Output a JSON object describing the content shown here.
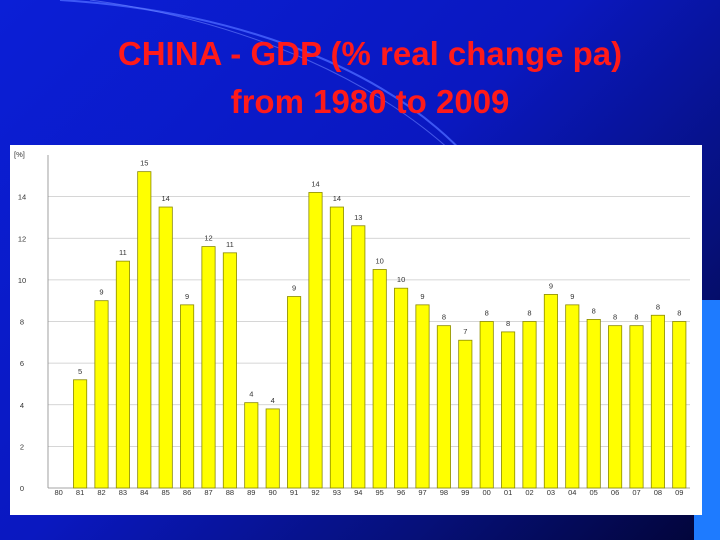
{
  "title": {
    "line1": "CHINA - GDP (% real change pa)",
    "line2": "from 1980 to 2009"
  },
  "colors": {
    "bar_fill": "#ffff00",
    "bar_stroke": "#8a8a00",
    "title": "#ff1a1a",
    "grid": "#c8c8c8"
  },
  "chart_data": {
    "type": "bar",
    "ylabel": "[%]",
    "ylim": [
      0,
      16
    ],
    "yticks": [
      0,
      2,
      4,
      6,
      8,
      10,
      12,
      14
    ],
    "grid": true,
    "categories": [
      "80",
      "81",
      "82",
      "83",
      "84",
      "85",
      "86",
      "87",
      "88",
      "89",
      "90",
      "91",
      "92",
      "93",
      "94",
      "95",
      "96",
      "97",
      "98",
      "99",
      "00",
      "01",
      "02",
      "03",
      "04",
      "05",
      "06",
      "07",
      "08",
      "09"
    ],
    "values": [
      null,
      5.2,
      9.0,
      10.9,
      15.2,
      13.5,
      8.8,
      11.6,
      11.3,
      4.1,
      3.8,
      9.2,
      14.2,
      13.5,
      12.6,
      10.5,
      9.6,
      8.8,
      7.8,
      7.1,
      8.0,
      7.5,
      8.0,
      9.3,
      8.8,
      8.1,
      7.8,
      7.8,
      8.3,
      8.0
    ],
    "data_labels": [
      "",
      "5",
      "9",
      "11",
      "15",
      "14",
      "9",
      "12",
      "11",
      "4",
      "4",
      "9",
      "14",
      "14",
      "13",
      "10",
      "10",
      "9",
      "8",
      "7",
      "8",
      "8",
      "8",
      "9",
      "9",
      "8",
      "8",
      "8",
      "8",
      "8"
    ]
  }
}
